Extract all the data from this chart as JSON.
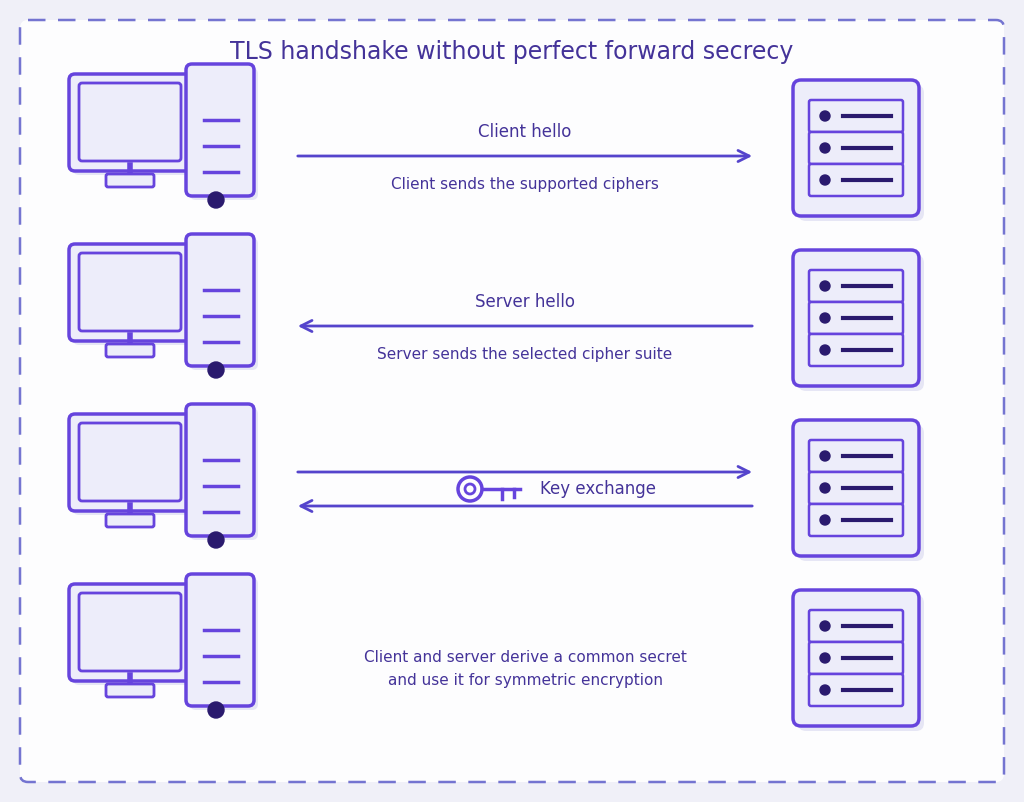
{
  "title": "TLS handshake without perfect forward secrecy",
  "bg_outer": "#f0f0f8",
  "bg_inner": "#f5f5fc",
  "border_color": "#6666cc",
  "icon_stroke": "#6644dd",
  "icon_fill": "#ededfa",
  "shadow_color": "#d8d8ef",
  "arrow_color": "#5544cc",
  "text_color": "#443399",
  "dot_color": "#2a1a6e",
  "rows": [
    {
      "label_top": "Client hello",
      "label_bottom": "Client sends the supported ciphers",
      "direction": "right"
    },
    {
      "label_top": "Server hello",
      "label_bottom": "Server sends the selected cipher suite",
      "direction": "left"
    },
    {
      "label_top": null,
      "label_bottom": "Key exchange",
      "direction": "both"
    },
    {
      "label_top": "Client and server derive a common secret",
      "label_bottom": "and use it for symmetric encryption",
      "direction": "none"
    }
  ],
  "figsize": [
    10.24,
    8.02
  ],
  "dpi": 100
}
